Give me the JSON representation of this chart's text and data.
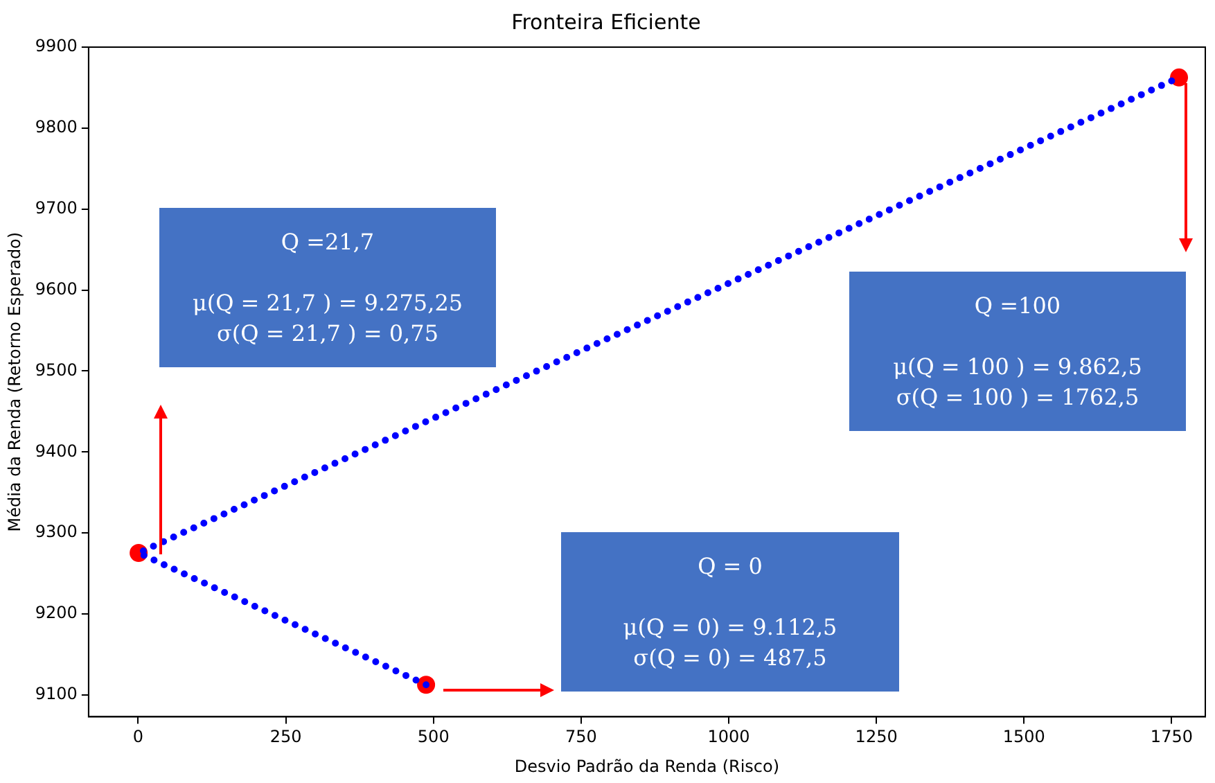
{
  "chart_data": {
    "type": "line",
    "title": "Fronteira Eficiente",
    "xlabel": "Desvio Padrão da Renda (Risco)",
    "ylabel": "Média da Renda (Retorno Esperado)",
    "xlim": [
      -84,
      1807
    ],
    "xticks": [
      0,
      250,
      500,
      750,
      1000,
      1250,
      1500,
      1750
    ],
    "ylim": [
      9073,
      9900
    ],
    "yticks": [
      9100,
      9200,
      9300,
      9400,
      9500,
      9600,
      9700,
      9800,
      9900
    ],
    "grid": false,
    "legend": false,
    "series": [
      {
        "type": "line",
        "x": [
          487.5,
          0.75,
          1762.5
        ],
        "values": [
          9112.5,
          9275.25,
          9862.5
        ],
        "color": "#0000ff",
        "line_style": "dotted",
        "marker": "none"
      },
      {
        "type": "scatter",
        "x": [
          0.75,
          487.5,
          1762.5
        ],
        "values": [
          9275.25,
          9112.5,
          9862.5
        ],
        "color": "#ff0000",
        "marker": "circle"
      }
    ],
    "annotations": [
      "Q =21,7\n\nμ(Q = 21,7 ) = 9.275,25\nσ(Q = 21,7 ) = 0,75",
      "Q = 0\n\nμ(Q = 0) = 9.112,5\nσ(Q = 0) = 487,5",
      "Q =100\n\nμ(Q = 100 ) = 9.862,5\nσ(Q = 100 ) = 1762,5"
    ]
  }
}
